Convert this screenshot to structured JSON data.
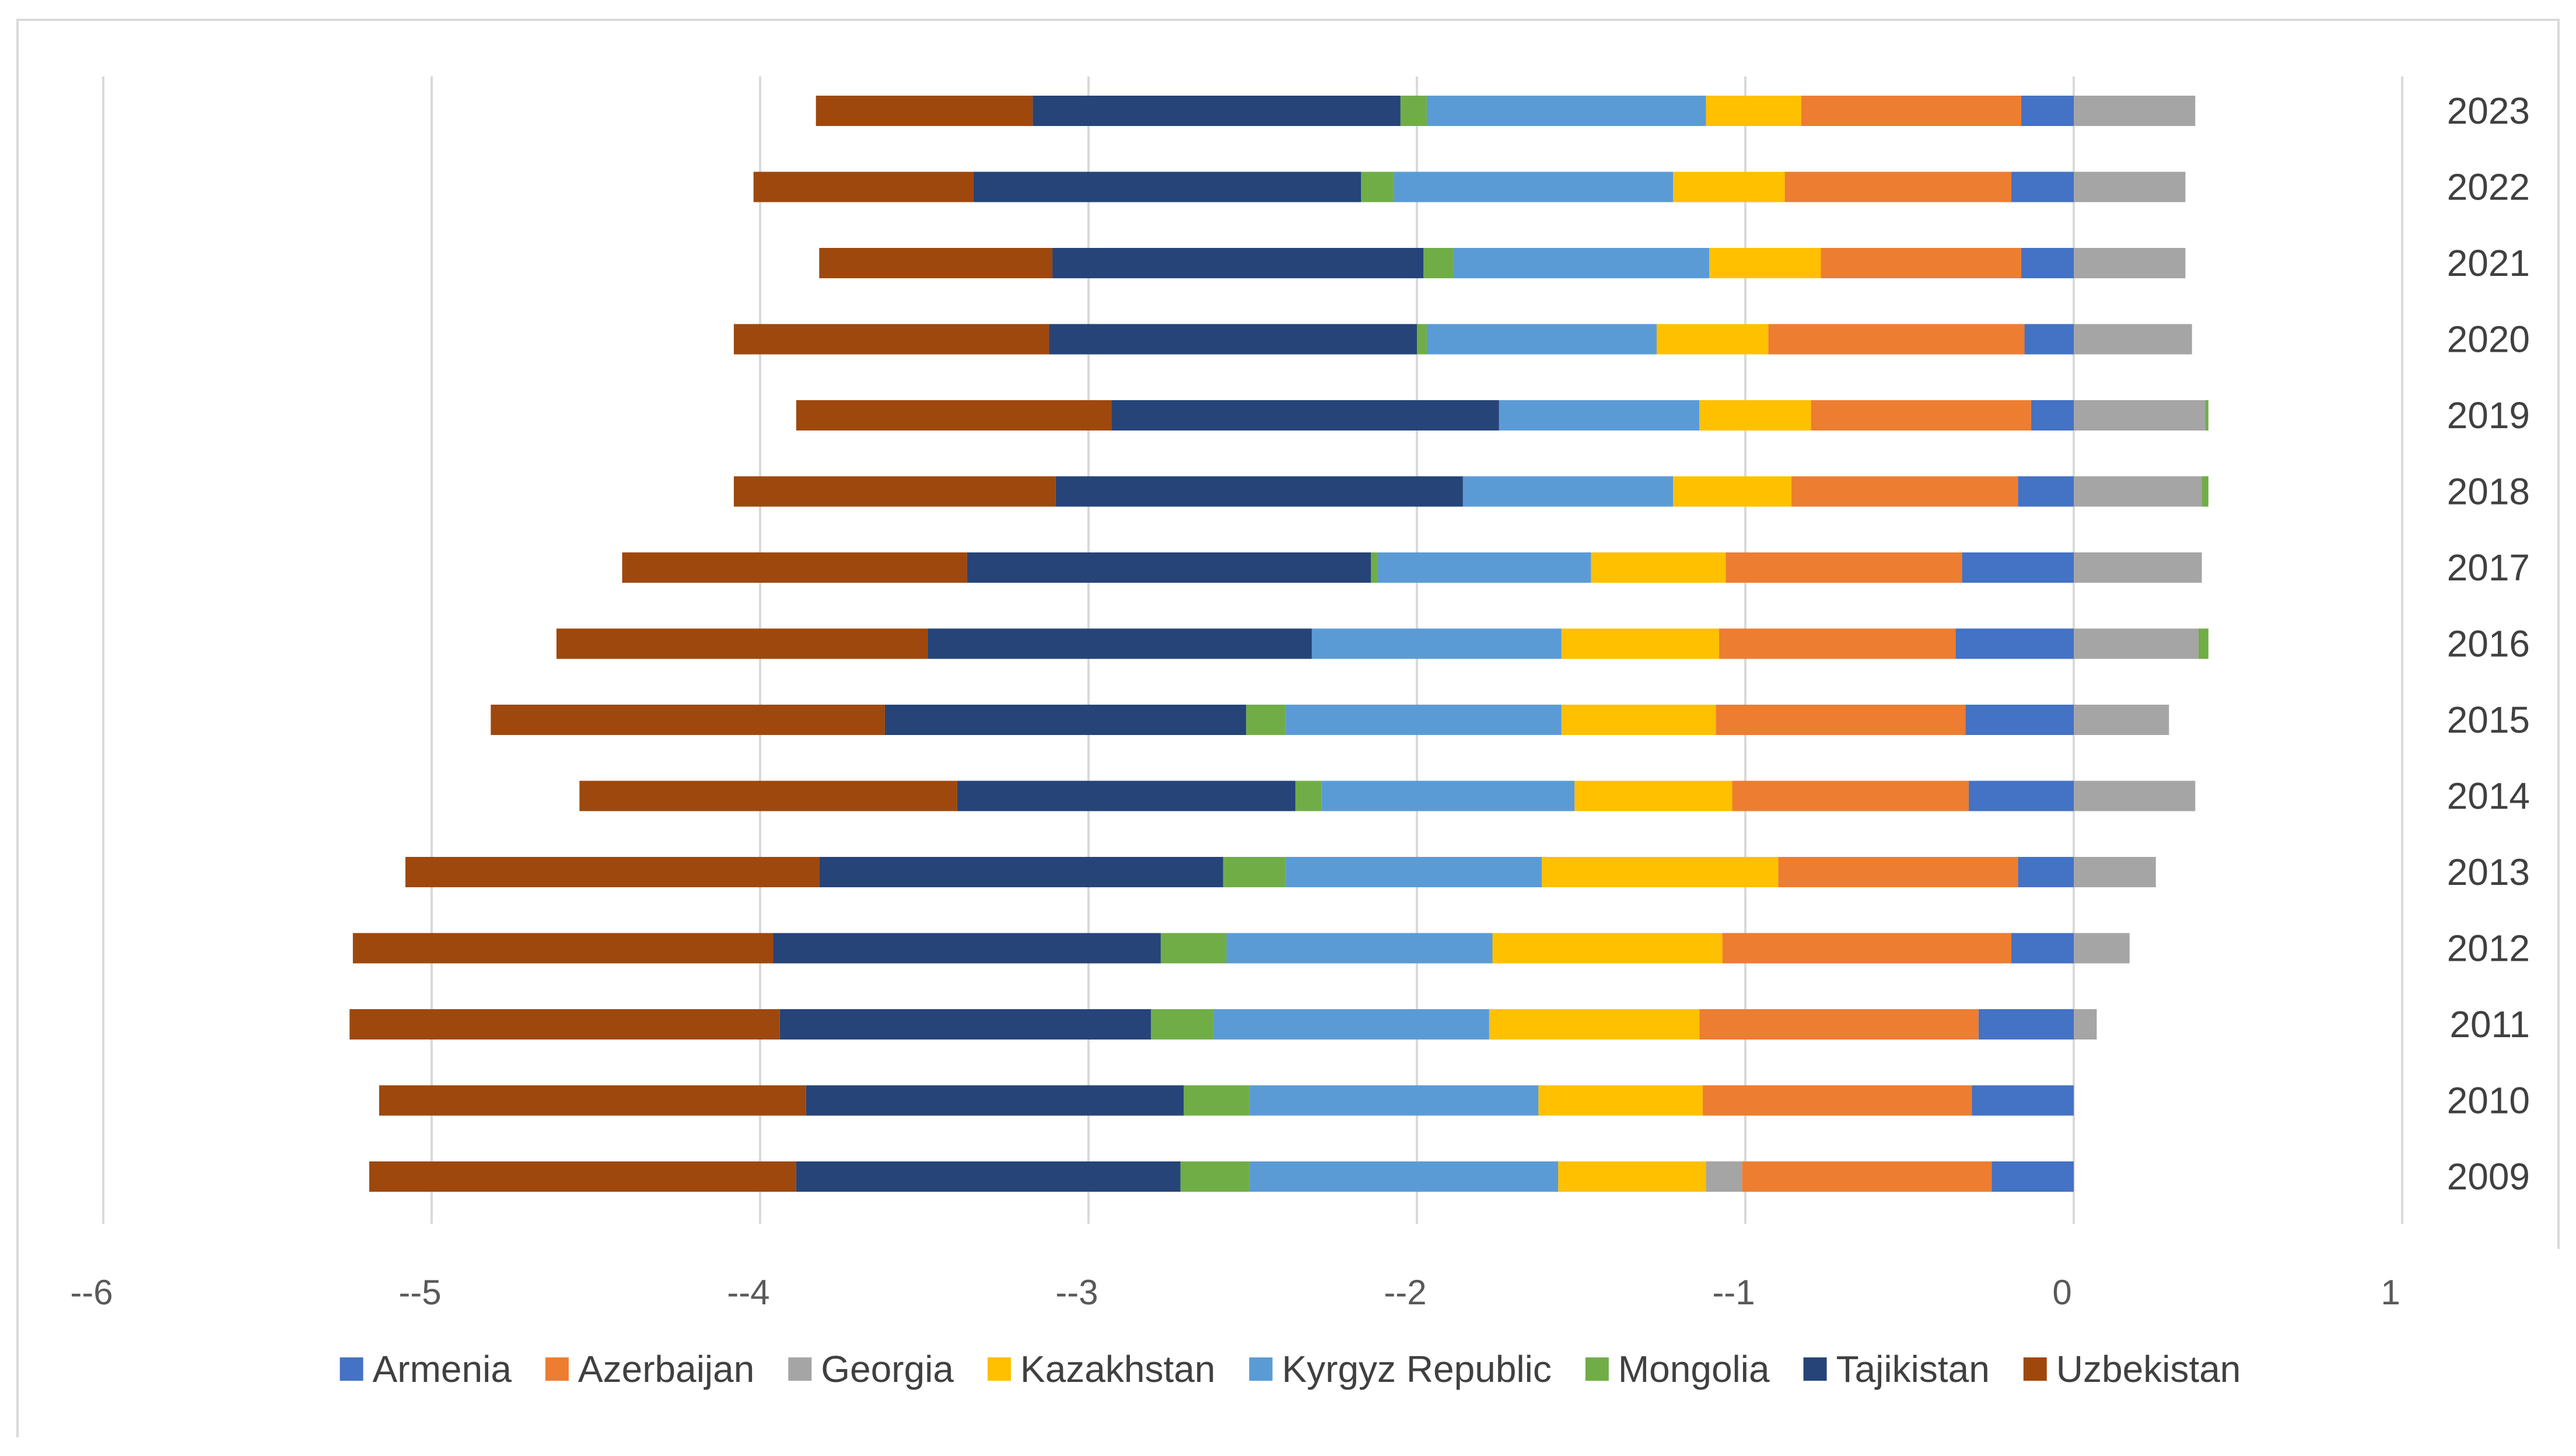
{
  "chart_data": {
    "type": "bar",
    "orientation": "horizontal-stacked-diverging",
    "title": "",
    "xlabel": "",
    "ylabel": "",
    "xlim": [
      -6,
      1
    ],
    "x_ticks": [
      -6,
      -5,
      -4,
      -3,
      -2,
      -1,
      0,
      1
    ],
    "x_tick_labels": [
      "--6",
      "--5",
      "--4",
      "--3",
      "--2",
      "--1",
      "0",
      "1"
    ],
    "grid": "vertical",
    "legend_position": "bottom",
    "categories": [
      "2023",
      "2022",
      "2021",
      "2020",
      "2019",
      "2018",
      "2017",
      "2016",
      "2015",
      "2014",
      "2013",
      "2012",
      "2011",
      "2010",
      "2009"
    ],
    "series": [
      {
        "name": "Armenia",
        "color": "#4472C4",
        "values": [
          -0.16,
          -0.19,
          -0.16,
          -0.15,
          -0.13,
          -0.17,
          -0.34,
          -0.36,
          -0.33,
          -0.32,
          -0.17,
          -0.19,
          -0.29,
          -0.31,
          -0.25
        ]
      },
      {
        "name": "Azerbaijan",
        "color": "#ED7D31",
        "values": [
          -0.67,
          -0.69,
          -0.61,
          -0.78,
          -0.67,
          -0.69,
          -0.72,
          -0.72,
          -0.76,
          -0.72,
          -0.73,
          -0.88,
          -0.85,
          -0.82,
          -0.76
        ]
      },
      {
        "name": "Georgia",
        "color": "#A5A5A5",
        "values": [
          0.37,
          0.34,
          0.34,
          0.36,
          0.4,
          0.39,
          0.39,
          0.38,
          0.29,
          0.37,
          0.25,
          0.17,
          0.07,
          0,
          -0.11
        ]
      },
      {
        "name": "Kazakhstan",
        "color": "#FFC000",
        "values": [
          -0.29,
          -0.34,
          -0.34,
          -0.34,
          -0.34,
          -0.36,
          -0.41,
          -0.48,
          -0.47,
          -0.48,
          -0.72,
          -0.7,
          -0.64,
          -0.5,
          -0.45
        ]
      },
      {
        "name": "Kyrgyz Republic",
        "color": "#5B9BD5",
        "values": [
          -0.85,
          -0.85,
          -0.78,
          -0.7,
          -0.61,
          -0.64,
          -0.65,
          -0.76,
          -0.84,
          -0.77,
          -0.78,
          -0.81,
          -0.84,
          -0.88,
          -0.94
        ]
      },
      {
        "name": "Mongolia",
        "color": "#70AD47",
        "values": [
          -0.08,
          -0.1,
          -0.09,
          -0.03,
          0.01,
          0.02,
          -0.02,
          0.03,
          -0.12,
          -0.08,
          -0.19,
          -0.2,
          -0.19,
          -0.2,
          -0.21
        ]
      },
      {
        "name": "Tajikistan",
        "color": "#264478",
        "values": [
          -1.12,
          -1.18,
          -1.13,
          -1.12,
          -1.18,
          -1.24,
          -1.23,
          -1.17,
          -1.1,
          -1.03,
          -1.23,
          -1.18,
          -1.13,
          -1.15,
          -1.17
        ]
      },
      {
        "name": "Uzbekistan",
        "color": "#9E480E",
        "values": [
          -0.66,
          -0.67,
          -0.71,
          -0.96,
          -0.96,
          -0.98,
          -1.05,
          -1.13,
          -1.2,
          -1.15,
          -1.26,
          -1.28,
          -1.31,
          -1.3,
          -1.3
        ]
      }
    ]
  }
}
